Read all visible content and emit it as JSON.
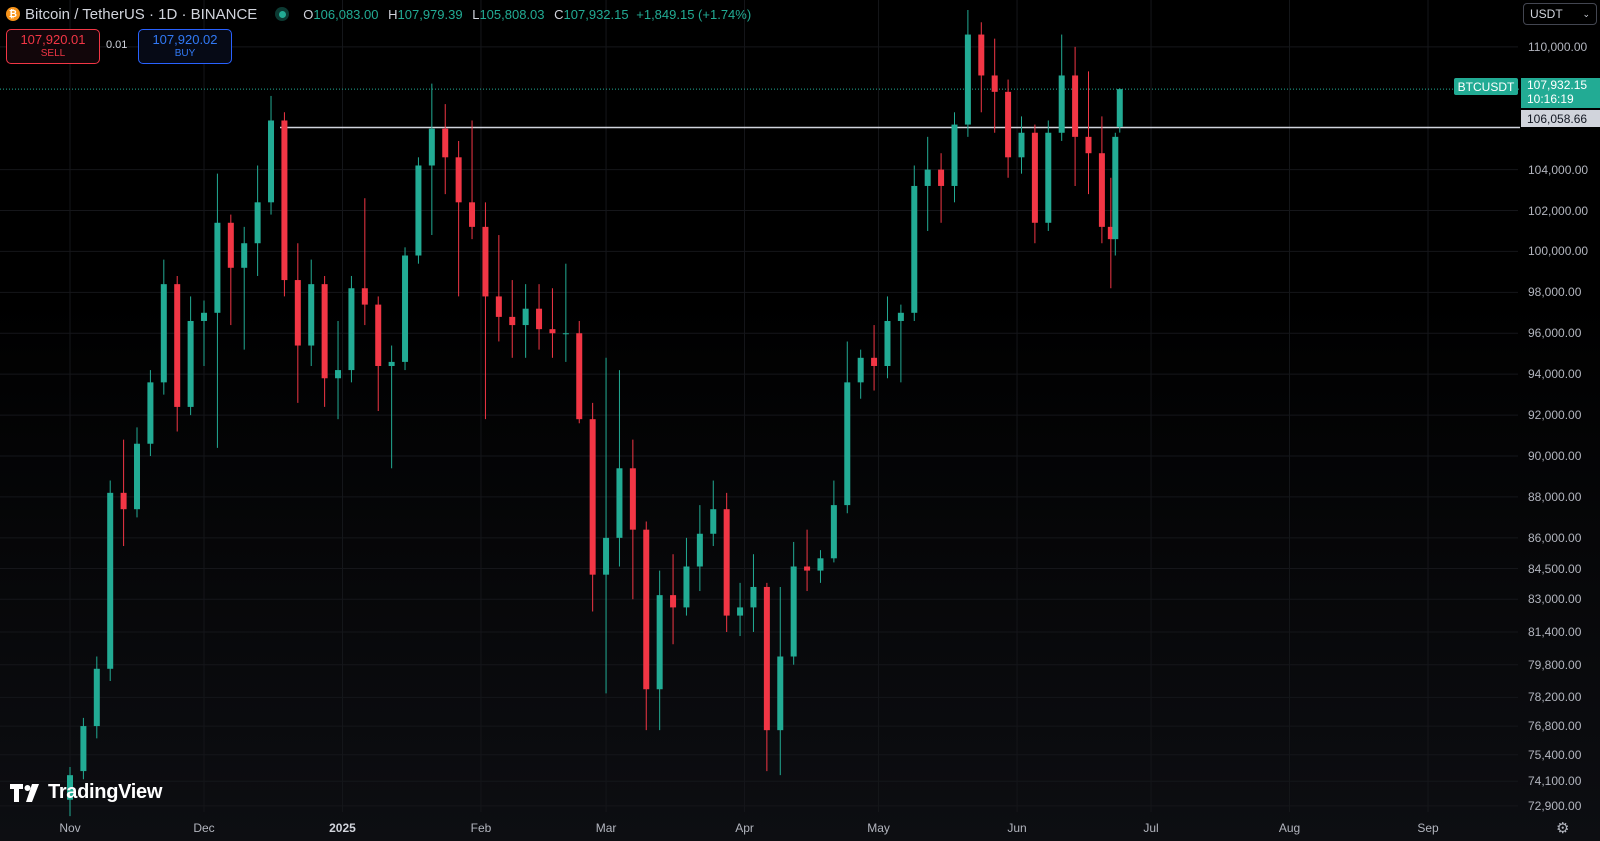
{
  "header": {
    "symbol_title": "Bitcoin / TetherUS · 1D · BINANCE",
    "open_label": "O",
    "open": "106,083.00",
    "high_label": "H",
    "high": "107,979.39",
    "low_label": "L",
    "low": "105,808.03",
    "close_label": "C",
    "close": "107,932.15",
    "change": "+1,849.15 (+1.74%)"
  },
  "trade": {
    "sell_price": "107,920.01",
    "sell_label": "SELL",
    "spread": "0.01",
    "buy_price": "107,920.02",
    "buy_label": "BUY"
  },
  "currency_selector": {
    "value": "USDT"
  },
  "price_axis": {
    "ticks": [
      "110,000.00",
      "104,000.00",
      "102,000.00",
      "100,000.00",
      "98,000.00",
      "96,000.00",
      "94,000.00",
      "92,000.00",
      "90,000.00",
      "88,000.00",
      "86,000.00",
      "84,500.00",
      "83,000.00",
      "81,400.00",
      "79,800.00",
      "78,200.00",
      "76,800.00",
      "75,400.00",
      "74,100.00",
      "72,900.00"
    ]
  },
  "time_axis": {
    "labels": [
      {
        "text": "Nov",
        "bold": false
      },
      {
        "text": "Dec",
        "bold": false
      },
      {
        "text": "2025",
        "bold": true
      },
      {
        "text": "Feb",
        "bold": false
      },
      {
        "text": "Mar",
        "bold": false
      },
      {
        "text": "Apr",
        "bold": false
      },
      {
        "text": "May",
        "bold": false
      },
      {
        "text": "Jun",
        "bold": false
      },
      {
        "text": "Jul",
        "bold": false
      },
      {
        "text": "Aug",
        "bold": false
      },
      {
        "text": "Sep",
        "bold": false
      }
    ]
  },
  "last_price": {
    "symbol": "BTCUSDT",
    "price": "107,932.15",
    "countdown": "10:16:19"
  },
  "horizontal_line": {
    "price_label": "106,058.66",
    "value": 106058.66
  },
  "branding": {
    "name": "TradingView"
  },
  "colors": {
    "up": "#22ab94",
    "down": "#f23645",
    "background": "#000000"
  },
  "chart_data": {
    "type": "candlestick",
    "price_range": [
      72600,
      111800
    ],
    "last_price": 107932.15,
    "horizontal_line": 106058.66,
    "candles": [
      {
        "date": "2024-11-01",
        "o": 73200,
        "h": 74800,
        "l": 72400,
        "c": 74400
      },
      {
        "date": "2024-11-04",
        "o": 74600,
        "h": 77200,
        "l": 74200,
        "c": 76800
      },
      {
        "date": "2024-11-07",
        "o": 76800,
        "h": 80200,
        "l": 76200,
        "c": 79600
      },
      {
        "date": "2024-11-10",
        "o": 79600,
        "h": 88800,
        "l": 79000,
        "c": 88200
      },
      {
        "date": "2024-11-13",
        "o": 88200,
        "h": 90800,
        "l": 85600,
        "c": 87400
      },
      {
        "date": "2024-11-16",
        "o": 87400,
        "h": 91400,
        "l": 87000,
        "c": 90600
      },
      {
        "date": "2024-11-19",
        "o": 90600,
        "h": 94200,
        "l": 90000,
        "c": 93600
      },
      {
        "date": "2024-11-22",
        "o": 93600,
        "h": 99600,
        "l": 93000,
        "c": 98400
      },
      {
        "date": "2024-11-25",
        "o": 98400,
        "h": 98800,
        "l": 91200,
        "c": 92400
      },
      {
        "date": "2024-11-28",
        "o": 92400,
        "h": 97800,
        "l": 92000,
        "c": 96600
      },
      {
        "date": "2024-12-01",
        "o": 96600,
        "h": 97600,
        "l": 94400,
        "c": 97000
      },
      {
        "date": "2024-12-04",
        "o": 97000,
        "h": 103800,
        "l": 90400,
        "c": 101400
      },
      {
        "date": "2024-12-07",
        "o": 101400,
        "h": 101800,
        "l": 96400,
        "c": 99200
      },
      {
        "date": "2024-12-10",
        "o": 99200,
        "h": 101200,
        "l": 95200,
        "c": 100400
      },
      {
        "date": "2024-12-13",
        "o": 100400,
        "h": 104200,
        "l": 98800,
        "c": 102400
      },
      {
        "date": "2024-12-16",
        "o": 102400,
        "h": 107600,
        "l": 101800,
        "c": 106400
      },
      {
        "date": "2024-12-19",
        "o": 106400,
        "h": 106800,
        "l": 97800,
        "c": 98600
      },
      {
        "date": "2024-12-22",
        "o": 98600,
        "h": 100400,
        "l": 92600,
        "c": 95400
      },
      {
        "date": "2024-12-25",
        "o": 95400,
        "h": 99600,
        "l": 94400,
        "c": 98400
      },
      {
        "date": "2024-12-28",
        "o": 98400,
        "h": 98800,
        "l": 92400,
        "c": 93800
      },
      {
        "date": "2024-12-31",
        "o": 93800,
        "h": 96600,
        "l": 91800,
        "c": 94200
      },
      {
        "date": "2025-01-03",
        "o": 94200,
        "h": 98800,
        "l": 93600,
        "c": 98200
      },
      {
        "date": "2025-01-06",
        "o": 98200,
        "h": 102600,
        "l": 96400,
        "c": 97400
      },
      {
        "date": "2025-01-09",
        "o": 97400,
        "h": 97800,
        "l": 92200,
        "c": 94400
      },
      {
        "date": "2025-01-12",
        "o": 94400,
        "h": 95400,
        "l": 89400,
        "c": 94600
      },
      {
        "date": "2025-01-15",
        "o": 94600,
        "h": 100200,
        "l": 94200,
        "c": 99800
      },
      {
        "date": "2025-01-18",
        "o": 99800,
        "h": 104600,
        "l": 99400,
        "c": 104200
      },
      {
        "date": "2025-01-21",
        "o": 104200,
        "h": 108200,
        "l": 100800,
        "c": 106000
      },
      {
        "date": "2025-01-24",
        "o": 106000,
        "h": 107200,
        "l": 102800,
        "c": 104600
      },
      {
        "date": "2025-01-27",
        "o": 104600,
        "h": 105400,
        "l": 97800,
        "c": 102400
      },
      {
        "date": "2025-01-30",
        "o": 102400,
        "h": 106400,
        "l": 100600,
        "c": 101200
      },
      {
        "date": "2025-02-02",
        "o": 101200,
        "h": 102400,
        "l": 91800,
        "c": 97800
      },
      {
        "date": "2025-02-05",
        "o": 97800,
        "h": 100800,
        "l": 95600,
        "c": 96800
      },
      {
        "date": "2025-02-08",
        "o": 96800,
        "h": 98600,
        "l": 94800,
        "c": 96400
      },
      {
        "date": "2025-02-11",
        "o": 96400,
        "h": 98400,
        "l": 94800,
        "c": 97200
      },
      {
        "date": "2025-02-14",
        "o": 97200,
        "h": 98400,
        "l": 95200,
        "c": 96200
      },
      {
        "date": "2025-02-17",
        "o": 96200,
        "h": 98200,
        "l": 94800,
        "c": 96000
      },
      {
        "date": "2025-02-20",
        "o": 96000,
        "h": 99400,
        "l": 94600,
        "c": 96000
      },
      {
        "date": "2025-02-23",
        "o": 96000,
        "h": 96600,
        "l": 91600,
        "c": 91800
      },
      {
        "date": "2025-02-26",
        "o": 91800,
        "h": 92600,
        "l": 82400,
        "c": 84200
      },
      {
        "date": "2025-03-01",
        "o": 84200,
        "h": 94800,
        "l": 78400,
        "c": 86000
      },
      {
        "date": "2025-03-04",
        "o": 86000,
        "h": 94200,
        "l": 84600,
        "c": 89400
      },
      {
        "date": "2025-03-07",
        "o": 89400,
        "h": 90800,
        "l": 83000,
        "c": 86400
      },
      {
        "date": "2025-03-10",
        "o": 86400,
        "h": 86800,
        "l": 76600,
        "c": 78600
      },
      {
        "date": "2025-03-13",
        "o": 78600,
        "h": 84400,
        "l": 76600,
        "c": 83200
      },
      {
        "date": "2025-03-16",
        "o": 83200,
        "h": 85200,
        "l": 80800,
        "c": 82600
      },
      {
        "date": "2025-03-19",
        "o": 82600,
        "h": 86000,
        "l": 82200,
        "c": 84600
      },
      {
        "date": "2025-03-22",
        "o": 84600,
        "h": 87600,
        "l": 83400,
        "c": 86200
      },
      {
        "date": "2025-03-25",
        "o": 86200,
        "h": 88800,
        "l": 85600,
        "c": 87400
      },
      {
        "date": "2025-03-28",
        "o": 87400,
        "h": 88200,
        "l": 81400,
        "c": 82200
      },
      {
        "date": "2025-03-31",
        "o": 82200,
        "h": 83800,
        "l": 81200,
        "c": 82600
      },
      {
        "date": "2025-04-03",
        "o": 82600,
        "h": 85200,
        "l": 81400,
        "c": 83600
      },
      {
        "date": "2025-04-06",
        "o": 83600,
        "h": 83800,
        "l": 74600,
        "c": 76600
      },
      {
        "date": "2025-04-09",
        "o": 76600,
        "h": 83600,
        "l": 74400,
        "c": 80200
      },
      {
        "date": "2025-04-12",
        "o": 80200,
        "h": 85800,
        "l": 79800,
        "c": 84600
      },
      {
        "date": "2025-04-15",
        "o": 84600,
        "h": 86400,
        "l": 83400,
        "c": 84400
      },
      {
        "date": "2025-04-18",
        "o": 84400,
        "h": 85400,
        "l": 83800,
        "c": 85000
      },
      {
        "date": "2025-04-21",
        "o": 85000,
        "h": 88800,
        "l": 84800,
        "c": 87600
      },
      {
        "date": "2025-04-24",
        "o": 87600,
        "h": 95600,
        "l": 87200,
        "c": 93600
      },
      {
        "date": "2025-04-27",
        "o": 93600,
        "h": 95200,
        "l": 92800,
        "c": 94800
      },
      {
        "date": "2025-04-30",
        "o": 94800,
        "h": 96400,
        "l": 93200,
        "c": 94400
      },
      {
        "date": "2025-05-03",
        "o": 94400,
        "h": 97800,
        "l": 93800,
        "c": 96600
      },
      {
        "date": "2025-05-06",
        "o": 96600,
        "h": 97400,
        "l": 93600,
        "c": 97000
      },
      {
        "date": "2025-05-09",
        "o": 97000,
        "h": 104200,
        "l": 96600,
        "c": 103200
      },
      {
        "date": "2025-05-12",
        "o": 103200,
        "h": 105600,
        "l": 101000,
        "c": 104000
      },
      {
        "date": "2025-05-15",
        "o": 104000,
        "h": 104800,
        "l": 101400,
        "c": 103200
      },
      {
        "date": "2025-05-18",
        "o": 103200,
        "h": 106800,
        "l": 102400,
        "c": 106200
      },
      {
        "date": "2025-05-21",
        "o": 106200,
        "h": 111800,
        "l": 105600,
        "c": 110600
      },
      {
        "date": "2025-05-24",
        "o": 110600,
        "h": 111200,
        "l": 106800,
        "c": 108600
      },
      {
        "date": "2025-05-27",
        "o": 108600,
        "h": 110400,
        "l": 105800,
        "c": 107800
      },
      {
        "date": "2025-05-30",
        "o": 107800,
        "h": 108400,
        "l": 103600,
        "c": 104600
      },
      {
        "date": "2025-06-02",
        "o": 104600,
        "h": 106600,
        "l": 103800,
        "c": 105800
      },
      {
        "date": "2025-06-05",
        "o": 105800,
        "h": 106200,
        "l": 100400,
        "c": 101400
      },
      {
        "date": "2025-06-08",
        "o": 101400,
        "h": 106400,
        "l": 101000,
        "c": 105800
      },
      {
        "date": "2025-06-11",
        "o": 105800,
        "h": 110600,
        "l": 105400,
        "c": 108600
      },
      {
        "date": "2025-06-14",
        "o": 108600,
        "h": 110000,
        "l": 103200,
        "c": 105600
      },
      {
        "date": "2025-06-17",
        "o": 105600,
        "h": 108800,
        "l": 102800,
        "c": 104800
      },
      {
        "date": "2025-06-20",
        "o": 104800,
        "h": 106600,
        "l": 100400,
        "c": 101200
      },
      {
        "date": "2025-06-22",
        "o": 101200,
        "h": 103600,
        "l": 98200,
        "c": 100600
      },
      {
        "date": "2025-06-23",
        "o": 100600,
        "h": 105800,
        "l": 99800,
        "c": 105600
      },
      {
        "date": "2025-06-24",
        "o": 106083,
        "h": 107979.39,
        "l": 105808.03,
        "c": 107932.15
      }
    ]
  }
}
